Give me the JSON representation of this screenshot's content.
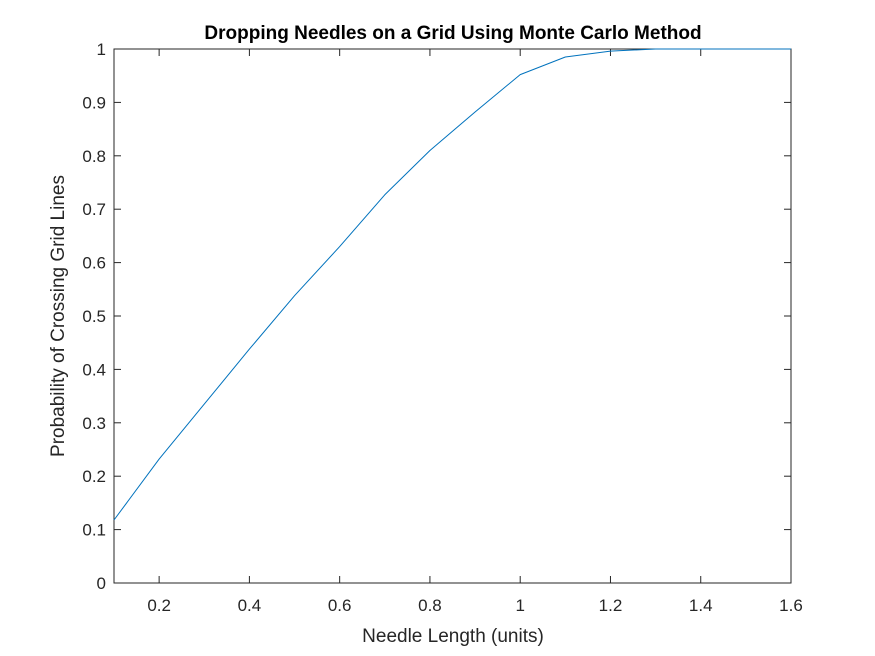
{
  "chart_data": {
    "type": "line",
    "title": "Dropping Needles on a Grid Using Monte Carlo Method",
    "xlabel": "Needle Length (units)",
    "ylabel": "Probability of Crossing Grid Lines",
    "xlim": [
      0.1,
      1.6
    ],
    "ylim": [
      0,
      1
    ],
    "xticks": [
      "0.2",
      "0.4",
      "0.6",
      "0.8",
      "1",
      "1.2",
      "1.4",
      "1.6"
    ],
    "xtick_values": [
      0.2,
      0.4,
      0.6,
      0.8,
      1.0,
      1.2,
      1.4,
      1.6
    ],
    "yticks": [
      "0",
      "0.1",
      "0.2",
      "0.3",
      "0.4",
      "0.5",
      "0.6",
      "0.7",
      "0.8",
      "0.9",
      "1"
    ],
    "ytick_values": [
      0,
      0.1,
      0.2,
      0.3,
      0.4,
      0.5,
      0.6,
      0.7,
      0.8,
      0.9,
      1.0
    ],
    "grid": false,
    "series": [
      {
        "color": "#0072BD",
        "x": [
          0.1,
          0.2,
          0.3,
          0.4,
          0.5,
          0.6,
          0.7,
          0.8,
          0.9,
          1.0,
          1.1,
          1.2,
          1.3,
          1.4,
          1.5,
          1.6
        ],
        "y": [
          0.118,
          0.232,
          0.335,
          0.438,
          0.538,
          0.63,
          0.727,
          0.81,
          0.882,
          0.952,
          0.985,
          0.996,
          1.0,
          1.0,
          1.0,
          1.0
        ]
      }
    ]
  }
}
